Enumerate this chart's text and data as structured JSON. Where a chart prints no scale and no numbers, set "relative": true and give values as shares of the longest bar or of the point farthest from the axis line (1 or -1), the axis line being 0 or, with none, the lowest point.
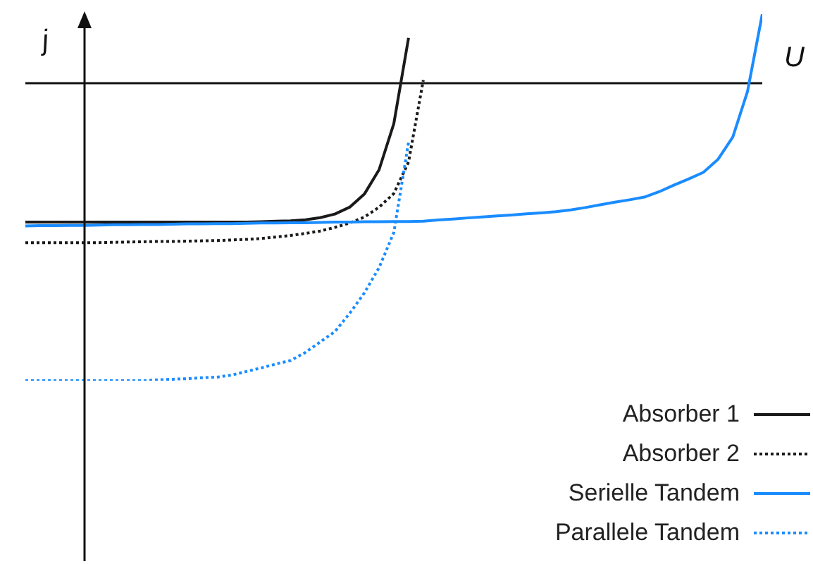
{
  "chart_data": {
    "type": "line",
    "relative": true,
    "xlabel": "U",
    "ylabel": "j",
    "grid": false,
    "legend": "bottom right",
    "marker": "none",
    "categories": [
      null,
      null,
      null,
      null,
      null,
      null,
      null,
      null,
      null,
      null,
      null,
      null,
      null,
      null,
      null,
      null,
      null,
      null,
      null,
      null,
      null,
      null,
      null,
      null,
      null,
      null,
      null,
      null,
      null,
      null,
      null,
      null,
      null,
      null,
      null,
      null,
      null,
      null,
      null,
      null,
      null,
      null,
      null,
      null,
      null,
      null,
      null,
      null,
      null,
      null,
      null
    ],
    "series": [
      {
        "name": "Absorber 1",
        "color": "#1a1a1a",
        "line_style": "solid",
        "values": [
          -0.467,
          -0.467,
          -0.467,
          -0.467,
          -0.467,
          -0.467,
          -0.467,
          -0.467,
          -0.467,
          -0.467,
          -0.467,
          -0.467,
          -0.467,
          -0.467,
          -0.467,
          -0.467,
          -0.466,
          -0.464,
          -0.463,
          -0.459,
          -0.452,
          -0.44,
          -0.417,
          -0.373,
          -0.291,
          -0.136,
          0.152,
          null,
          null,
          null,
          null,
          null,
          null,
          null,
          null,
          null,
          null,
          null,
          null,
          null,
          null,
          null,
          null,
          null,
          null,
          null,
          null,
          null,
          null,
          null,
          null
        ]
      },
      {
        "name": "Absorber 2",
        "color": "#1a1a1a",
        "line_style": "dotted",
        "values": [
          -0.536,
          -0.536,
          -0.536,
          -0.536,
          -0.536,
          -0.536,
          -0.535,
          -0.534,
          -0.533,
          -0.532,
          -0.532,
          -0.531,
          -0.53,
          -0.529,
          -0.527,
          -0.525,
          -0.522,
          -0.517,
          -0.512,
          -0.505,
          -0.497,
          -0.485,
          -0.47,
          -0.45,
          -0.417,
          -0.371,
          -0.265,
          0.01,
          null,
          null,
          null,
          null,
          null,
          null,
          null,
          null,
          null,
          null,
          null,
          null,
          null,
          null,
          null,
          null,
          null,
          null,
          null,
          null,
          null,
          null,
          null
        ]
      },
      {
        "name": "Serielle Tandem",
        "color": "#1a8cff",
        "line_style": "solid",
        "values": [
          -0.48,
          -0.479,
          -0.479,
          -0.478,
          -0.478,
          -0.477,
          -0.476,
          -0.476,
          -0.475,
          -0.475,
          -0.474,
          -0.473,
          -0.473,
          -0.472,
          -0.472,
          -0.471,
          -0.47,
          -0.47,
          -0.469,
          -0.469,
          -0.468,
          -0.467,
          -0.467,
          -0.466,
          -0.466,
          -0.465,
          -0.465,
          -0.464,
          -0.46,
          -0.457,
          -0.453,
          -0.45,
          -0.446,
          -0.443,
          -0.439,
          -0.436,
          -0.432,
          -0.426,
          -0.418,
          -0.409,
          -0.4,
          -0.392,
          -0.383,
          -0.365,
          -0.343,
          -0.322,
          -0.3,
          -0.256,
          -0.181,
          -0.028,
          0.232
        ]
      },
      {
        "name": "Parallele Tandem",
        "color": "#1a8cff",
        "line_style": "dotted",
        "values": [
          -1,
          -1,
          -1,
          -1,
          -1,
          -1,
          -1,
          -1,
          -1,
          -0.997,
          -0.995,
          -0.993,
          -0.99,
          -0.988,
          -0.981,
          -0.969,
          -0.957,
          -0.944,
          -0.932,
          -0.905,
          -0.87,
          -0.835,
          -0.774,
          -0.705,
          -0.62,
          -0.502,
          -0.199,
          null,
          null,
          null,
          null,
          null,
          null,
          null,
          null,
          null,
          null,
          null,
          null,
          null,
          null,
          null,
          null,
          null,
          null,
          null,
          null,
          null,
          null,
          null,
          null
        ]
      }
    ]
  }
}
